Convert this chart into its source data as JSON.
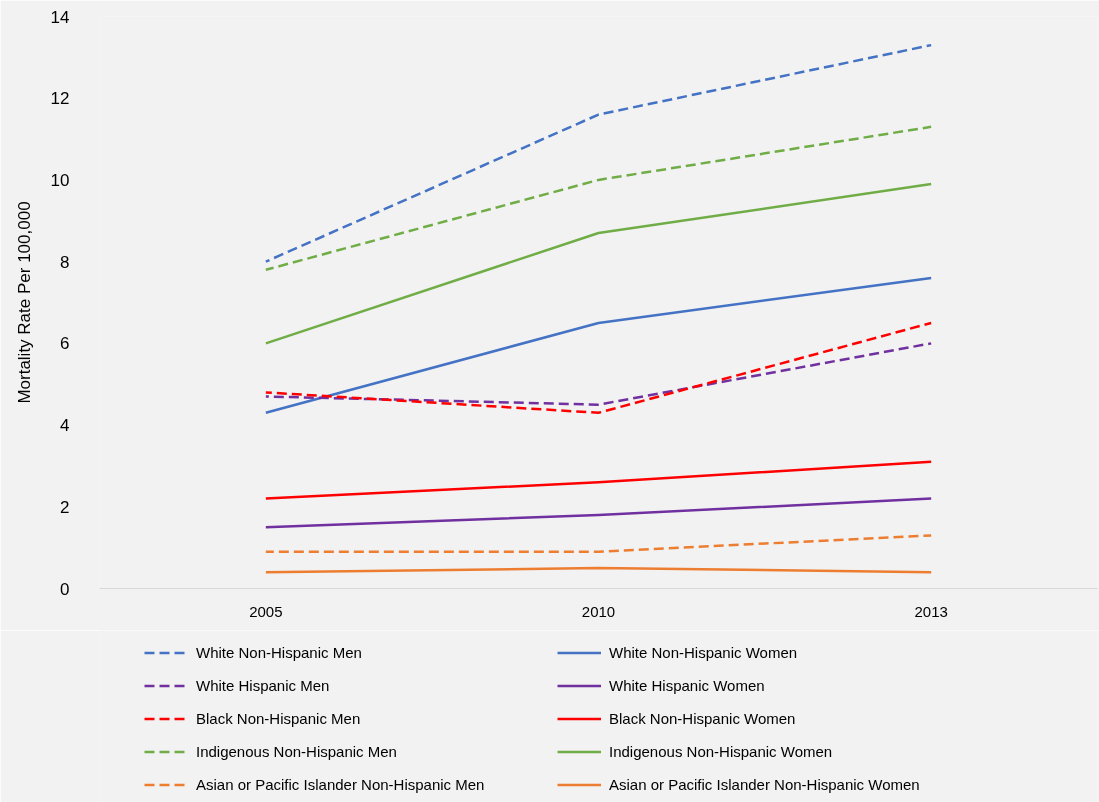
{
  "chart_data": {
    "type": "line",
    "ylabel": "Mortality Rate Per 100,000",
    "categories": [
      "2005",
      "2010",
      "2013"
    ],
    "ylim": [
      0,
      14
    ],
    "yticks": [
      0,
      2,
      4,
      6,
      8,
      10,
      12,
      14
    ],
    "legend": "bottom",
    "series": [
      {
        "name": "White Non-Hispanic Men",
        "color": "#4472c4",
        "line_style": "dashed",
        "values": [
          8.0,
          11.6,
          13.3
        ]
      },
      {
        "name": "White Non-Hispanic Women",
        "color": "#4472c4",
        "line_style": "solid",
        "values": [
          4.3,
          6.5,
          7.6
        ]
      },
      {
        "name": "White Hispanic Men",
        "color": "#7030a0",
        "line_style": "dashed",
        "values": [
          4.7,
          4.5,
          6.0
        ]
      },
      {
        "name": "White Hispanic Women",
        "color": "#7030a0",
        "line_style": "solid",
        "values": [
          1.5,
          1.8,
          2.2
        ]
      },
      {
        "name": "Black Non-Hispanic Men",
        "color": "#ff0000",
        "line_style": "dashed",
        "values": [
          4.8,
          4.3,
          6.5
        ]
      },
      {
        "name": "Black Non-Hispanic Women",
        "color": "#ff0000",
        "line_style": "solid",
        "values": [
          2.2,
          2.6,
          3.1
        ]
      },
      {
        "name": "Indigenous Non-Hispanic Men",
        "color": "#70ad47",
        "line_style": "dashed",
        "values": [
          7.8,
          10.0,
          11.3
        ]
      },
      {
        "name": "Indigenous Non-Hispanic Women",
        "color": "#70ad47",
        "line_style": "solid",
        "values": [
          6.0,
          8.7,
          9.9
        ]
      },
      {
        "name": "Asian or Pacific Islander Non-Hispanic Men",
        "color": "#ed7d31",
        "line_style": "dashed",
        "values": [
          0.9,
          0.9,
          1.3
        ]
      },
      {
        "name": "Asian or Pacific Islander Non-Hispanic Women",
        "color": "#ed7d31",
        "line_style": "solid",
        "values": [
          0.4,
          0.5,
          0.4
        ]
      }
    ]
  }
}
